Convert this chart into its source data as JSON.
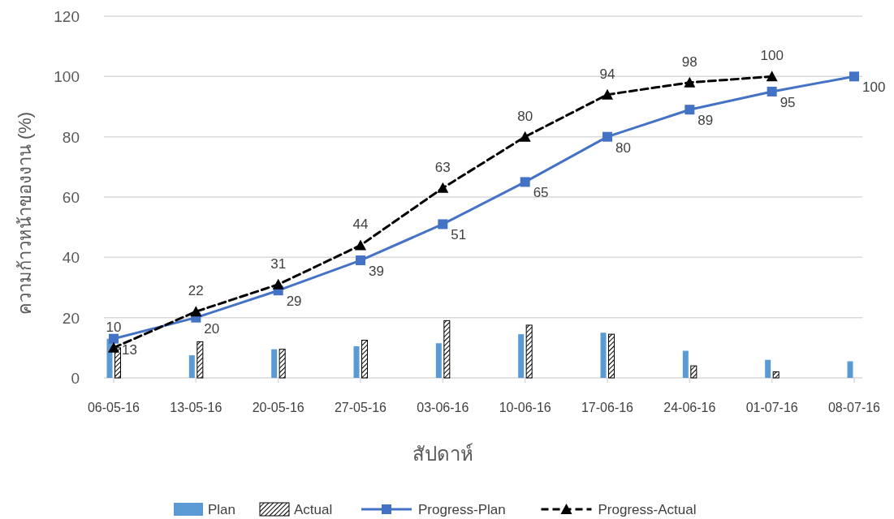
{
  "chart_data": {
    "type": "bar",
    "xlabel": "สัปดาห์",
    "ylabel": "ความก้าวหน้าของงาน (%)",
    "categories": [
      "06-05-16",
      "13-05-16",
      "20-05-16",
      "27-05-16",
      "03-06-16",
      "10-06-16",
      "17-06-16",
      "24-06-16",
      "01-07-16",
      "08-07-16"
    ],
    "series": [
      {
        "name": "Plan",
        "color": "#5b9bd5",
        "values": [
          13,
          7.5,
          9.5,
          10.5,
          11.5,
          14.5,
          15,
          9,
          6,
          5.5
        ]
      },
      {
        "name": "Actual",
        "color": "#000000",
        "values": [
          10,
          12,
          9.5,
          12.5,
          19,
          17.5,
          14.5,
          4,
          2,
          null
        ]
      },
      {
        "name": "Progress-Plan",
        "type": "line",
        "color": "#4472c4",
        "marker": "square",
        "line_style": "solid",
        "values": [
          13,
          20,
          29,
          39,
          51,
          65,
          80,
          89,
          95,
          100
        ],
        "value_labels": [
          "13",
          "20",
          "29",
          "39",
          "51",
          "65",
          "80",
          "89",
          "95",
          "100"
        ]
      },
      {
        "name": "Progress-Actual",
        "type": "line",
        "color": "#000000",
        "marker": "triangle",
        "line_style": "dashed",
        "values": [
          10,
          22,
          31,
          44,
          63,
          80,
          94,
          98,
          100,
          null
        ],
        "value_labels": [
          "10",
          "22",
          "31",
          "44",
          "63",
          "80",
          "94",
          "98",
          "100",
          null
        ]
      }
    ],
    "ylim": [
      0,
      120
    ],
    "yticks": [
      0,
      20,
      40,
      60,
      80,
      100,
      120
    ],
    "grid": "y",
    "legend": "bottom"
  }
}
